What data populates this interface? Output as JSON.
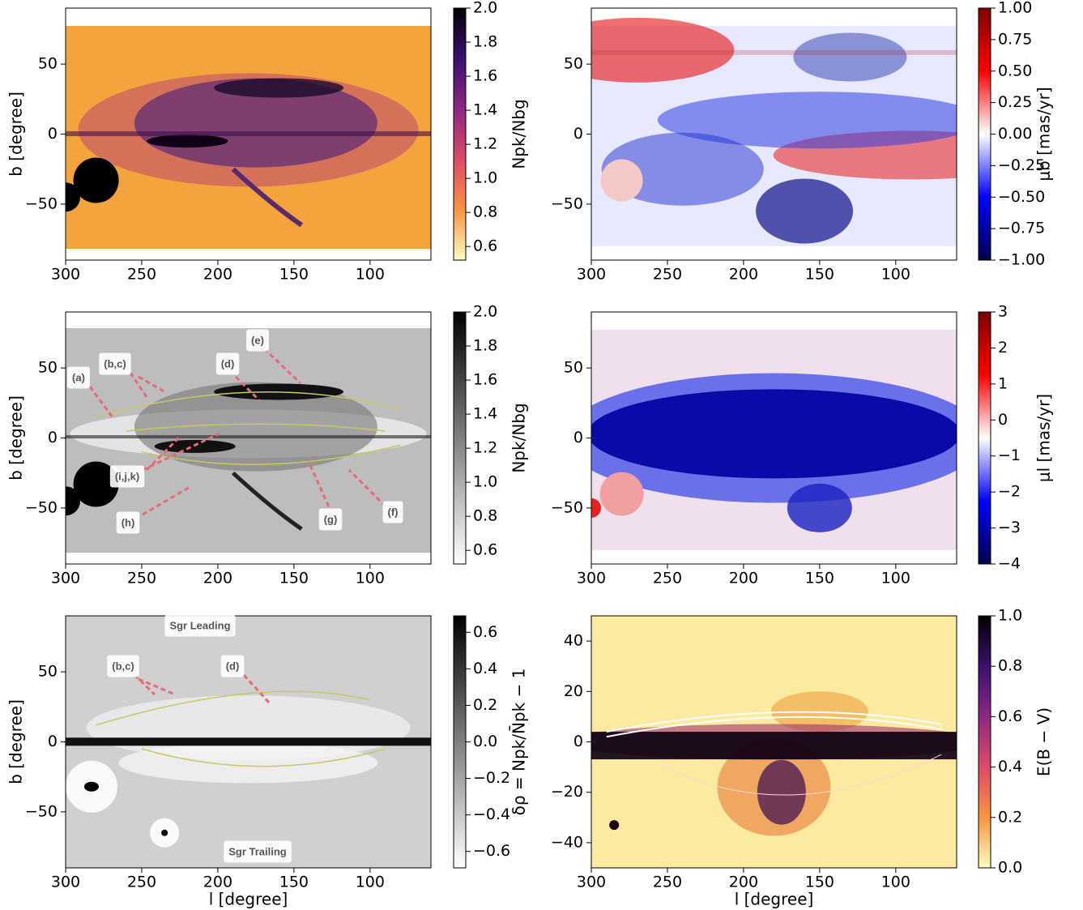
{
  "chart_data": [
    {
      "type": "heatmap",
      "ylabel": "b [degree]",
      "colorbar_label": "Npk/Nbg",
      "xlim": [
        300,
        60
      ],
      "ylim": [
        -90,
        90
      ],
      "xticks": [
        300,
        250,
        200,
        150,
        100
      ],
      "yticks": [
        {
          "value": -50,
          "label": "−50"
        },
        0,
        50
      ],
      "clim": [
        0.52,
        2.0
      ],
      "cticks": [
        0.6,
        0.8,
        {
          "value": 1,
          "label": "1.0"
        },
        1.2,
        1.4,
        1.6,
        1.8,
        {
          "value": 2,
          "label": "2.0"
        }
      ],
      "colormap": "inferno_r"
    },
    {
      "type": "heatmap",
      "colorbar_label": "μb [mas/yr]",
      "xlim": [
        300,
        60
      ],
      "ylim": [
        -90,
        90
      ],
      "xticks": [
        300,
        250,
        200,
        150,
        100
      ],
      "yticks": [
        {
          "value": -50,
          "label": "−50"
        },
        0,
        50
      ],
      "clim": [
        -1,
        1
      ],
      "cticks": [
        {
          "value": -1,
          "label": "−1.00"
        },
        {
          "value": -0.75,
          "label": "−0.75"
        },
        {
          "value": -0.5,
          "label": "−0.50"
        },
        {
          "value": -0.25,
          "label": "−0.25"
        },
        {
          "value": 0,
          "label": "0.00"
        },
        {
          "value": 0.25,
          "label": "0.25"
        },
        {
          "value": 0.5,
          "label": "0.50"
        },
        {
          "value": 0.75,
          "label": "0.75"
        },
        {
          "value": 1,
          "label": "1.00"
        }
      ],
      "colormap": "seismic"
    },
    {
      "type": "heatmap",
      "ylabel": "b [degree]",
      "colorbar_label": "Npk/Nbg",
      "xlim": [
        300,
        60
      ],
      "ylim": [
        -90,
        90
      ],
      "xticks": [
        300,
        250,
        200,
        150,
        100
      ],
      "yticks": [
        {
          "value": -50,
          "label": "−50"
        },
        0,
        50
      ],
      "clim": [
        0.52,
        2.0
      ],
      "cticks": [
        0.6,
        0.8,
        {
          "value": 1,
          "label": "1.0"
        },
        1.2,
        1.4,
        1.6,
        1.8,
        {
          "value": 2,
          "label": "2.0"
        }
      ],
      "colormap": "gray_r",
      "annotations": [
        "(a)",
        "(b,c)",
        "(d)",
        "(e)",
        "(i,j,k)",
        "(h)",
        "(g)",
        "(f)"
      ]
    },
    {
      "type": "heatmap",
      "colorbar_label": "μl [mas/yr]",
      "xlim": [
        300,
        60
      ],
      "ylim": [
        -90,
        90
      ],
      "xticks": [
        300,
        250,
        200,
        150,
        100
      ],
      "yticks": [
        {
          "value": -50,
          "label": "−50"
        },
        0,
        50
      ],
      "clim": [
        -4,
        3
      ],
      "cticks": [
        {
          "value": -4,
          "label": "−4"
        },
        {
          "value": -3,
          "label": "−3"
        },
        {
          "value": -2,
          "label": "−2"
        },
        {
          "value": -1,
          "label": "−1"
        },
        0,
        1,
        2,
        3
      ],
      "colormap": "seismic"
    },
    {
      "type": "heatmap",
      "ylabel": "b [degree]",
      "xlabel": "l [degree]",
      "colorbar_label": "δρ = Npk/N̄pk − 1",
      "xlim": [
        300,
        60
      ],
      "ylim": [
        -90,
        90
      ],
      "xticks": [
        300,
        250,
        200,
        150,
        100
      ],
      "yticks": [
        {
          "value": -50,
          "label": "−50"
        },
        0,
        50
      ],
      "clim": [
        -0.69,
        0.69
      ],
      "cticks": [
        {
          "value": -0.6,
          "label": "−0.6"
        },
        {
          "value": -0.4,
          "label": "−0.4"
        },
        {
          "value": -0.2,
          "label": "−0.2"
        },
        {
          "value": 0,
          "label": "0.0"
        },
        0.2,
        0.4,
        0.6
      ],
      "colormap": "gray_r",
      "annotations": [
        "Sgr  Leading",
        "(b,c)",
        "(d)",
        "Sgr  Trailing"
      ]
    },
    {
      "type": "heatmap",
      "xlabel": "l [degree]",
      "colorbar_label": "E(B − V)",
      "xlim": [
        300,
        60
      ],
      "ylim": [
        -50,
        50
      ],
      "xticks": [
        300,
        250,
        200,
        150,
        100
      ],
      "yticks": [
        {
          "value": -40,
          "label": "−40"
        },
        {
          "value": -20,
          "label": "−20"
        },
        0,
        20,
        40
      ],
      "clim": [
        0,
        1
      ],
      "cticks": [
        {
          "value": 0,
          "label": "0.0"
        },
        0.2,
        0.4,
        0.6,
        0.8,
        {
          "value": 1,
          "label": "1.0"
        }
      ],
      "colormap": "inferno_r"
    }
  ]
}
